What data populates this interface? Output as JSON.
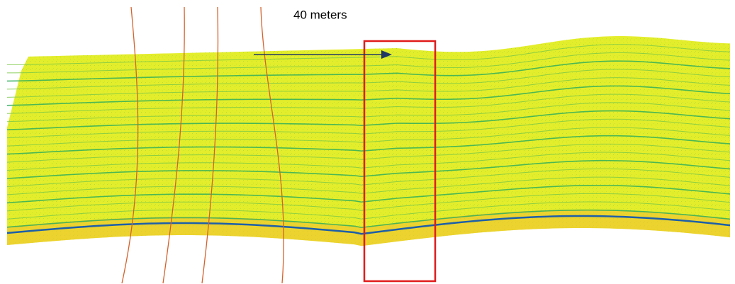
{
  "annotation": {
    "label": "40 meters"
  }
}
